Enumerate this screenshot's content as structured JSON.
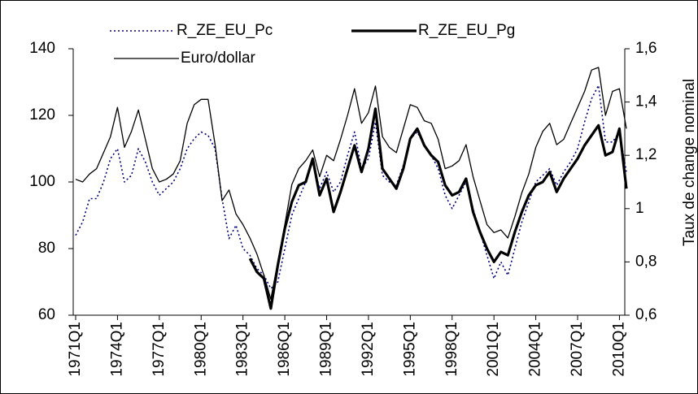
{
  "chart_data": {
    "type": "line",
    "x": [
      "1971Q1",
      "1971Q3",
      "1972Q1",
      "1972Q3",
      "1973Q1",
      "1973Q3",
      "1974Q1",
      "1974Q3",
      "1975Q1",
      "1975Q3",
      "1976Q1",
      "1976Q3",
      "1977Q1",
      "1977Q3",
      "1978Q1",
      "1978Q3",
      "1979Q1",
      "1979Q3",
      "1980Q1",
      "1980Q3",
      "1981Q1",
      "1981Q3",
      "1982Q1",
      "1982Q3",
      "1983Q1",
      "1983Q3",
      "1984Q1",
      "1984Q3",
      "1985Q1",
      "1985Q3",
      "1986Q1",
      "1986Q3",
      "1987Q1",
      "1987Q3",
      "1988Q1",
      "1988Q3",
      "1989Q1",
      "1989Q3",
      "1990Q1",
      "1990Q3",
      "1991Q1",
      "1991Q3",
      "1992Q1",
      "1992Q3",
      "1993Q1",
      "1993Q3",
      "1994Q1",
      "1994Q3",
      "1995Q1",
      "1995Q3",
      "1996Q1",
      "1996Q3",
      "1997Q1",
      "1997Q3",
      "1998Q1",
      "1998Q3",
      "1999Q1",
      "1999Q3",
      "2000Q1",
      "2000Q3",
      "2001Q1",
      "2001Q3",
      "2002Q1",
      "2002Q3",
      "2003Q1",
      "2003Q3",
      "2004Q1",
      "2004Q3",
      "2005Q1",
      "2005Q3",
      "2006Q1",
      "2006Q3",
      "2007Q1",
      "2007Q3",
      "2008Q1",
      "2008Q3",
      "2009Q1",
      "2009Q3",
      "2010Q1",
      "2010Q3"
    ],
    "series": [
      {
        "name": "R_ZE_EU_Pc",
        "color": "#000080",
        "style": "dotted",
        "values": [
          84,
          88,
          95,
          95,
          100,
          107,
          110,
          100,
          102,
          110,
          106,
          100,
          96,
          98,
          100,
          104,
          110,
          113,
          115,
          114,
          110,
          95,
          83,
          87,
          80,
          78,
          74,
          72,
          68,
          70,
          80,
          90,
          95,
          100,
          106,
          98,
          103,
          97,
          100,
          108,
          115,
          104,
          107,
          118,
          102,
          100,
          99,
          105,
          113,
          115,
          111,
          108,
          104,
          96,
          92,
          96,
          100,
          92,
          85,
          78,
          71,
          76,
          72,
          80,
          88,
          94,
          100,
          102,
          104,
          99,
          103,
          106,
          110,
          118,
          125,
          129,
          112,
          112,
          115,
          103
        ]
      },
      {
        "name": "R_ZE_EU_Pg",
        "color": "#000000",
        "style": "bold",
        "values": [
          null,
          null,
          null,
          null,
          null,
          null,
          null,
          null,
          null,
          null,
          null,
          null,
          null,
          null,
          null,
          null,
          null,
          null,
          null,
          null,
          null,
          null,
          null,
          null,
          null,
          77,
          73,
          71,
          62,
          75,
          86,
          94,
          99,
          100,
          107,
          96,
          101,
          91,
          97,
          104,
          111,
          103,
          110,
          122,
          104,
          101,
          98,
          104,
          113,
          116,
          111,
          108,
          106,
          99,
          96,
          97,
          101,
          91,
          85,
          80,
          76,
          79,
          78,
          85,
          91,
          96,
          99,
          100,
          103,
          97,
          101,
          104,
          107,
          111,
          114,
          117,
          108,
          109,
          116,
          98
        ]
      },
      {
        "name": "Euro/dollar",
        "color": "#000000",
        "style": "thin",
        "axis": "y2",
        "values": [
          1.11,
          1.1,
          1.13,
          1.15,
          1.21,
          1.27,
          1.38,
          1.23,
          1.29,
          1.37,
          1.26,
          1.15,
          1.1,
          1.11,
          1.13,
          1.18,
          1.32,
          1.39,
          1.41,
          1.41,
          1.24,
          1.03,
          1.07,
          0.98,
          0.94,
          0.89,
          0.83,
          0.75,
          0.66,
          0.8,
          0.94,
          1.09,
          1.15,
          1.18,
          1.22,
          1.12,
          1.2,
          1.18,
          1.26,
          1.35,
          1.45,
          1.32,
          1.36,
          1.46,
          1.27,
          1.23,
          1.21,
          1.3,
          1.39,
          1.38,
          1.33,
          1.32,
          1.26,
          1.15,
          1.16,
          1.18,
          1.24,
          1.12,
          1.03,
          0.94,
          0.91,
          0.92,
          0.89,
          0.97,
          1.06,
          1.13,
          1.23,
          1.29,
          1.32,
          1.24,
          1.26,
          1.32,
          1.38,
          1.44,
          1.52,
          1.53,
          1.35,
          1.44,
          1.45,
          1.3
        ]
      }
    ],
    "xlim": [
      "1971Q1",
      "2010Q3"
    ],
    "xticks": [
      "1971Q1",
      "1974Q1",
      "1977Q1",
      "1980Q1",
      "1983Q1",
      "1986Q1",
      "1989Q1",
      "1992Q1",
      "1995Q1",
      "1998Q1",
      "2001Q1",
      "2004Q1",
      "2007Q1",
      "2010Q1"
    ],
    "ylim": [
      60,
      140
    ],
    "yticks": [
      60,
      80,
      100,
      120,
      140
    ],
    "y2lim": [
      0.6,
      1.6
    ],
    "y2ticks": [
      {
        "value": 0.6,
        "label": "0,6"
      },
      {
        "value": 0.8,
        "label": "0,8"
      },
      1,
      {
        "value": 1.2,
        "label": "1,2"
      },
      {
        "value": 1.4,
        "label": "1,4"
      },
      {
        "value": 1.6,
        "label": "1,6"
      }
    ],
    "y2label": "Taux de change nominal",
    "grid": false
  }
}
